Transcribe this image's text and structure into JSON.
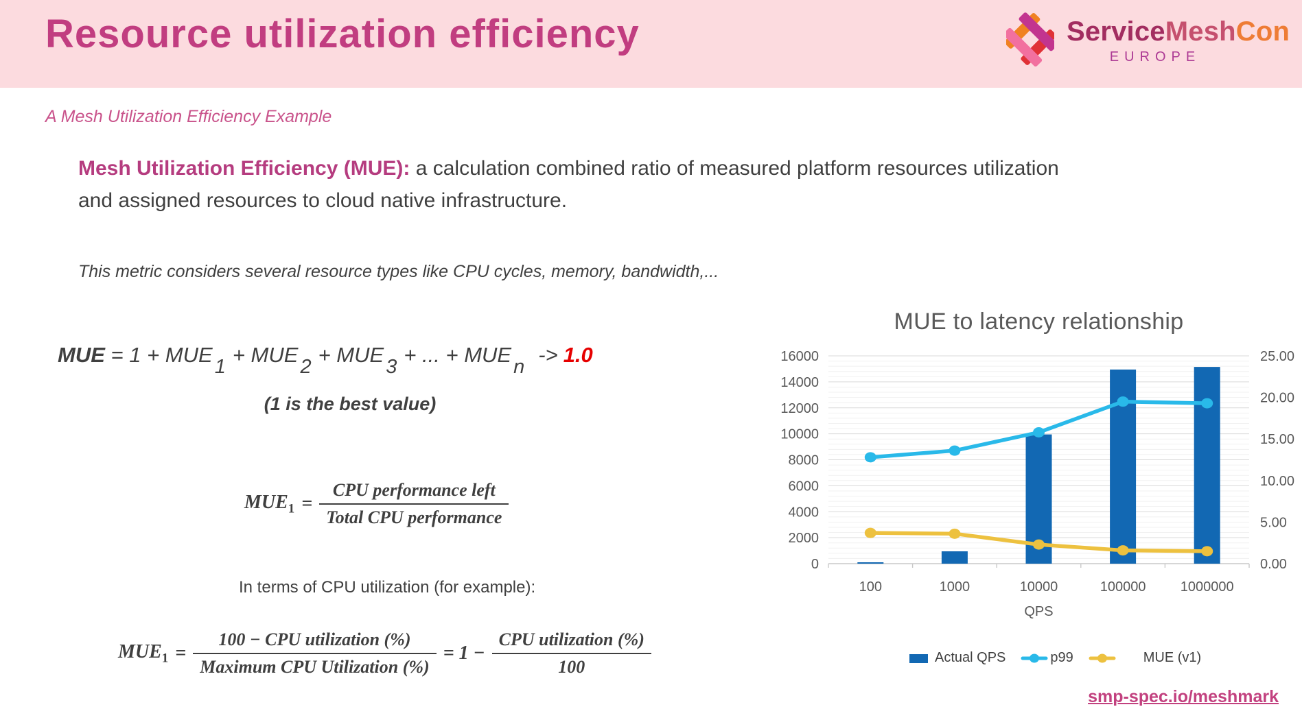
{
  "header": {
    "title": "Resource utilization efficiency",
    "logo": {
      "service": "Service",
      "mesh": "Mesh",
      "con": "Con",
      "region": "EUROPE"
    }
  },
  "subtitle": "A Mesh Utilization Efficiency Example",
  "definition": {
    "lead": "Mesh Utilization Efficiency (MUE):",
    "body": " a calculation combined ratio of measured platform resources utilization and assigned resources to cloud native infrastructure."
  },
  "note": "This metric considers several resource types like CPU cycles, memory, bandwidth,...",
  "formula_sum": {
    "lhs": "MUE",
    "eq1": " = 1 + MUE",
    "sub1": "1",
    "p2": "+ MUE",
    "sub2": "2",
    "p3": "+ MUE",
    "sub3": "3",
    "p4": "+ ... + MUE",
    "subn": "n",
    "arrow": "->",
    "target": "1.0",
    "caption": "(1 is the best value)"
  },
  "formula_mue1": {
    "lhs": "MUE",
    "sub": "1",
    "eq": "=",
    "num": "CPU performance left",
    "den": "Total CPU performance"
  },
  "cpu_note": "In terms of CPU utilization (for example):",
  "formula_cpu": {
    "lhs": "MUE",
    "sub": "1",
    "eq": "=",
    "num1": "100 − CPU utilization (%)",
    "den1": "Maximum CPU Utilization (%)",
    "mid": "= 1 −",
    "num2": "CPU utilization (%)",
    "den2": "100"
  },
  "footer_link": "smp-spec.io/meshmark",
  "colors": {
    "header_bg": "#fcdbdf",
    "title_pink": "#c13d80",
    "accent_red": "#e60000",
    "bar_blue": "#1268b3",
    "line_cyan": "#29b9e9",
    "line_yellow": "#edc13f",
    "logo_orange": "#f08122",
    "logo_red": "#e03136",
    "logo_magenta": "#c2348f",
    "logo_pink": "#f2709f"
  },
  "chart_data": {
    "type": "bar",
    "combo": true,
    "title": "MUE to latency relationship",
    "categories": [
      "100",
      "1000",
      "10000",
      "100000",
      "1000000"
    ],
    "xlabel": "QPS",
    "left_axis": {
      "min": 0,
      "max": 16000,
      "step": 2000,
      "minor_step": 400,
      "ticks": [
        "16000",
        "14000",
        "12000",
        "10000",
        "8000",
        "6000",
        "4000",
        "2000",
        "0"
      ]
    },
    "right_axis": {
      "min": 0,
      "max": 25,
      "step": 5,
      "ticks": [
        "25.00",
        "20.00",
        "15.00",
        "10.00",
        "5.00",
        "0.00"
      ]
    },
    "series": [
      {
        "name": "Actual QPS",
        "type": "bar",
        "axis": "left",
        "color": "#1268b3",
        "values": [
          100,
          950,
          9950,
          14950,
          15150
        ]
      },
      {
        "name": "p99",
        "type": "line",
        "axis": "right",
        "color": "#29b9e9",
        "values": [
          12.8,
          13.6,
          15.8,
          19.5,
          19.3
        ]
      },
      {
        "name": "MUE (v1)",
        "type": "line",
        "axis": "right",
        "color": "#edc13f",
        "values": [
          3.7,
          3.6,
          2.3,
          1.6,
          1.5
        ]
      }
    ],
    "legend_position": "bottom",
    "grid": true
  }
}
